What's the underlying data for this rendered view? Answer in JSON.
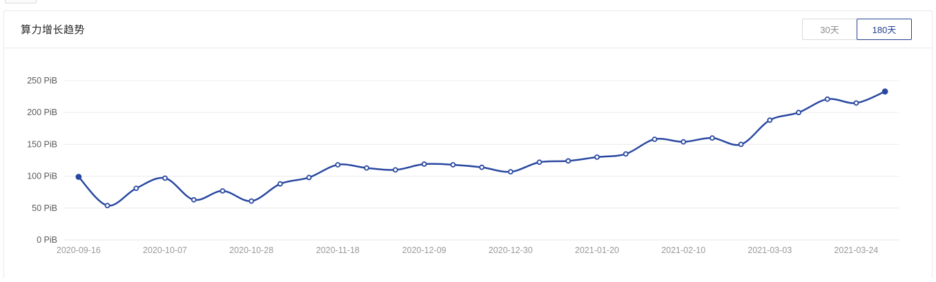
{
  "card": {
    "title": "算力增长趋势"
  },
  "toolbar": {
    "btn_30": "30天",
    "btn_180": "180天",
    "selected": "180天"
  },
  "colors": {
    "line": "#2847a0",
    "marker_fill": "#ffffff",
    "grid": "#ececec",
    "axis_line": "#e6e6e6",
    "y_label": "#595959",
    "x_label": "#999999",
    "accent": "#22408f",
    "inactive_border": "#d9d9d9",
    "inactive_text": "#8c8c8c",
    "card_border": "#e8e8e8",
    "title_text": "#262626"
  },
  "chart_data": {
    "type": "line",
    "title": "算力增长趋势",
    "unit": "PiB",
    "smooth": true,
    "grid": true,
    "legend_position": "none",
    "ylim": [
      0,
      250
    ],
    "y_ticks": [
      0,
      50,
      100,
      150,
      200,
      250
    ],
    "y_tick_labels": [
      "0 PiB",
      "50 PiB",
      "100 PiB",
      "150 PiB",
      "200 PiB",
      "250 PiB"
    ],
    "x_tick_labels": [
      "2020-09-16",
      "2020-10-07",
      "2020-10-28",
      "2020-11-18",
      "2020-12-09",
      "2020-12-30",
      "2021-01-20",
      "2021-02-10",
      "2021-03-03",
      "2021-03-24"
    ],
    "x_tick_every": 3,
    "x": [
      "2020-09-16",
      "2020-09-23",
      "2020-09-30",
      "2020-10-07",
      "2020-10-14",
      "2020-10-21",
      "2020-10-28",
      "2020-11-04",
      "2020-11-11",
      "2020-11-18",
      "2020-11-25",
      "2020-12-02",
      "2020-12-09",
      "2020-12-16",
      "2020-12-23",
      "2020-12-30",
      "2021-01-06",
      "2021-01-13",
      "2021-01-20",
      "2021-01-27",
      "2021-02-03",
      "2021-02-10",
      "2021-02-17",
      "2021-02-24",
      "2021-03-03",
      "2021-03-10",
      "2021-03-17",
      "2021-03-24",
      "2021-03-31"
    ],
    "values": [
      99,
      54,
      81,
      97,
      63,
      77,
      61,
      88,
      98,
      118,
      113,
      110,
      119,
      118,
      114,
      107,
      122,
      124,
      130,
      135,
      158,
      154,
      160,
      150,
      188,
      200,
      221,
      215,
      233
    ]
  }
}
